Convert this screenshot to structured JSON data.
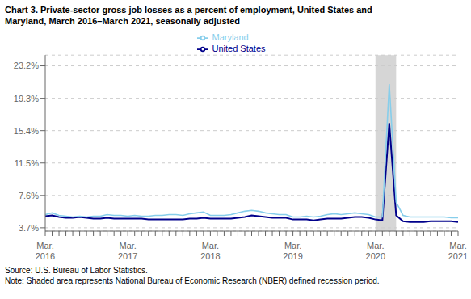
{
  "chart_data": {
    "type": "line",
    "title": "Chart 3. Private-sector gross job losses as a percent of employment, United States and\nMaryland, March 2016–March 2021, seasonally adjusted",
    "source": "Source: U.S. Bureau of Labor Statistics.",
    "note": "Note: Shaded area represents National Bureau of Economic Research (NBER) defined recession period.",
    "categories": [
      "Mar.\n2016",
      null,
      null,
      null,
      null,
      null,
      null,
      null,
      null,
      null,
      null,
      null,
      "Mar.\n2017",
      null,
      null,
      null,
      null,
      null,
      null,
      null,
      null,
      null,
      null,
      null,
      "Mar.\n2018",
      null,
      null,
      null,
      null,
      null,
      null,
      null,
      null,
      null,
      null,
      null,
      "Mar.\n2019",
      null,
      null,
      null,
      null,
      null,
      null,
      null,
      null,
      null,
      null,
      null,
      "Mar.\n2020",
      null,
      null,
      null,
      null,
      null,
      null,
      null,
      null,
      null,
      null,
      null,
      "Mar.\n2021"
    ],
    "series": [
      {
        "name": "United States",
        "color": "#00008B",
        "values": [
          5.1,
          5.2,
          5.0,
          4.9,
          4.9,
          5.0,
          4.9,
          4.8,
          4.8,
          4.9,
          4.8,
          4.8,
          4.8,
          4.8,
          4.8,
          4.7,
          4.7,
          4.7,
          4.7,
          4.7,
          4.7,
          4.8,
          4.8,
          4.9,
          4.8,
          4.8,
          4.8,
          4.8,
          4.9,
          5.0,
          5.2,
          5.1,
          5.0,
          4.9,
          4.9,
          4.9,
          4.7,
          4.7,
          4.7,
          4.6,
          4.7,
          4.8,
          4.8,
          4.8,
          4.9,
          5.0,
          5.0,
          4.9,
          4.7,
          4.6,
          16.3,
          5.2,
          4.5,
          4.4,
          4.4,
          4.4,
          4.5,
          4.5,
          4.5,
          4.5,
          4.4
        ]
      },
      {
        "name": "Maryland",
        "color": "#87CEEB",
        "values": [
          5.3,
          5.5,
          5.2,
          5.1,
          5.0,
          5.1,
          5.0,
          5.1,
          5.1,
          5.3,
          5.2,
          5.2,
          5.1,
          5.2,
          5.1,
          5.1,
          5.2,
          5.2,
          5.3,
          5.3,
          5.2,
          5.4,
          5.5,
          5.6,
          5.2,
          5.2,
          5.2,
          5.3,
          5.5,
          5.7,
          5.8,
          5.7,
          5.5,
          5.4,
          5.3,
          5.3,
          5.0,
          5.0,
          5.1,
          5.0,
          5.1,
          5.3,
          5.4,
          5.3,
          5.4,
          5.5,
          5.4,
          5.3,
          5.0,
          5.0,
          21.0,
          6.8,
          5.2,
          5.0,
          5.0,
          5.0,
          5.0,
          5.0,
          5.0,
          4.9,
          4.9
        ]
      }
    ],
    "ylim": [
      3.3,
      24.5
    ],
    "yticks": [
      {
        "value": 3.7,
        "label": "3.7%"
      },
      {
        "value": 7.6,
        "label": "7.6%"
      },
      {
        "value": 11.5,
        "label": "11.5%"
      },
      {
        "value": 15.4,
        "label": "15.4%"
      },
      {
        "value": 19.3,
        "label": "19.3%"
      },
      {
        "value": 23.2,
        "label": "23.2%"
      }
    ],
    "grid": true,
    "legend": "top",
    "recession_span": [
      48,
      51
    ]
  }
}
